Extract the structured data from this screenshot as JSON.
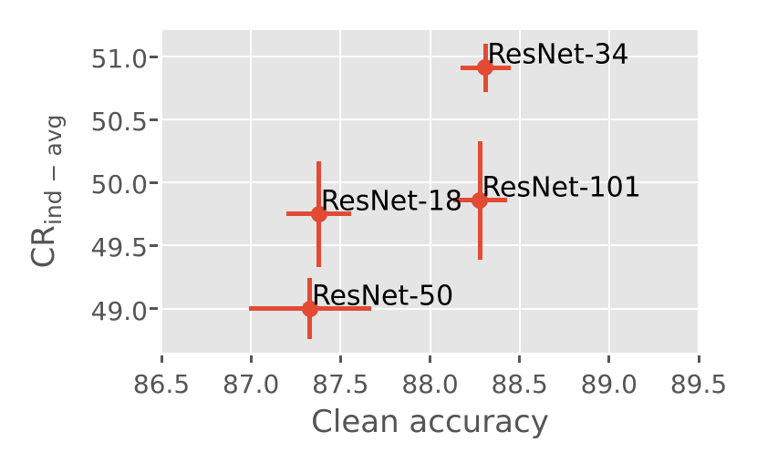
{
  "chart_data": {
    "type": "scatter",
    "title": "",
    "xlabel": "Clean accuracy",
    "ylabel_main": "CR",
    "ylabel_sub": "ind − avg",
    "xlim": [
      86.5,
      89.5
    ],
    "ylim": [
      48.65,
      51.21
    ],
    "xticks": [
      86.5,
      87.0,
      87.5,
      88.0,
      88.5,
      89.0,
      89.5
    ],
    "yticks": [
      49.0,
      49.5,
      50.0,
      50.5,
      51.0
    ],
    "grid": true,
    "legend": false,
    "series": [
      {
        "name": "ResNet-18",
        "x": 87.38,
        "y": 49.75,
        "xerr": 0.18,
        "yerr": 0.42
      },
      {
        "name": "ResNet-34",
        "x": 88.31,
        "y": 50.91,
        "xerr": 0.14,
        "yerr": 0.19
      },
      {
        "name": "ResNet-50",
        "x": 87.33,
        "y": 49.0,
        "xerr": 0.34,
        "yerr": 0.24
      },
      {
        "name": "ResNet-101",
        "x": 88.28,
        "y": 49.86,
        "xerr": 0.15,
        "yerr": 0.47
      }
    ],
    "colors": {
      "point": "#E24A33",
      "plot_background": "#E5E5E5",
      "figure_background": "#FFFFFF",
      "gridline": "#FFFFFF",
      "tick": "#555555",
      "tick_label": "#555555",
      "axis_label": "#555555",
      "annotation_text": "#000000"
    }
  }
}
